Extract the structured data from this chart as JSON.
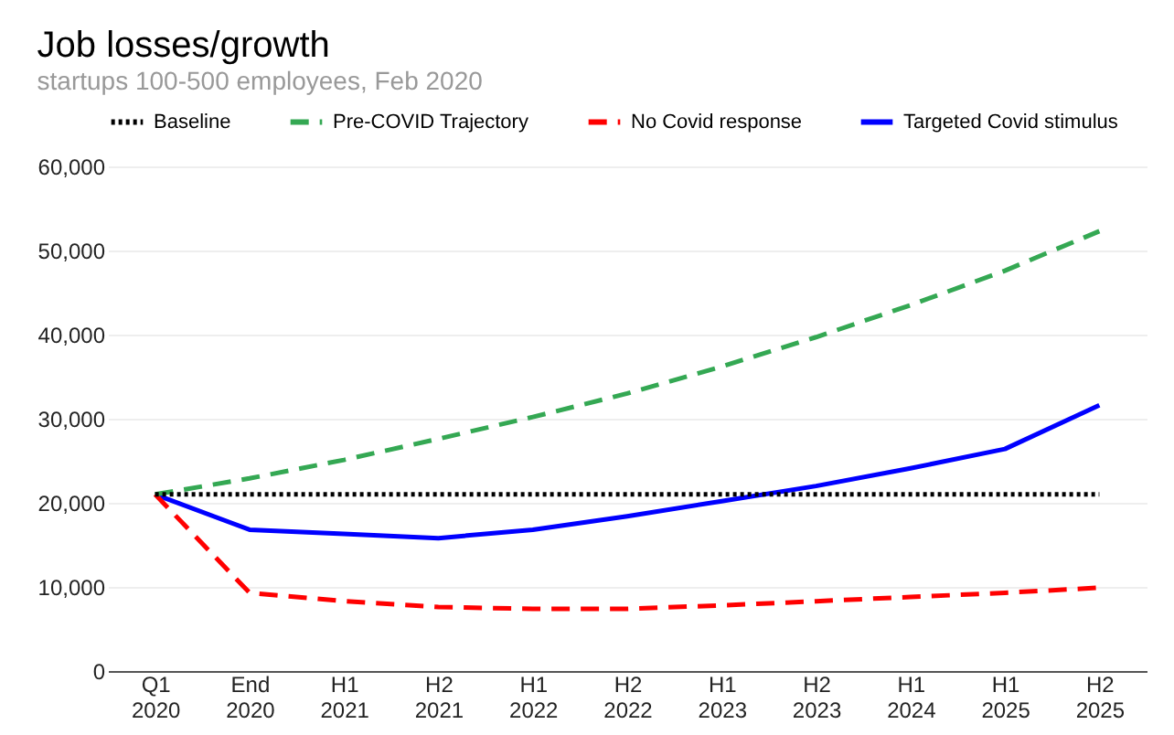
{
  "chart_data": {
    "type": "line",
    "title": "Job losses/growth",
    "subtitle": "startups 100-500 employees, Feb 2020",
    "categories": [
      "Q1 2020",
      "End 2020",
      "H1 2021",
      "H2 2021",
      "H1 2022",
      "H2 2022",
      "H1 2023",
      "H2 2023",
      "H1 2024",
      "H1 2025",
      "H2 2025"
    ],
    "series": [
      {
        "name": "Baseline",
        "color": "#000000",
        "line_style": "dotted",
        "values": [
          21000,
          21000,
          21000,
          21000,
          21000,
          21000,
          21000,
          21000,
          21000,
          21000,
          21000
        ]
      },
      {
        "name": "Pre-COVID Trajectory",
        "color": "#34a853",
        "line_style": "dashed",
        "values": [
          21000,
          22900,
          25100,
          27600,
          30200,
          33000,
          36200,
          39700,
          43500,
          47600,
          52300
        ]
      },
      {
        "name": "No Covid response",
        "color": "#ff0000",
        "line_style": "dashed",
        "values": [
          21000,
          9300,
          8300,
          7600,
          7400,
          7400,
          7800,
          8300,
          8800,
          9300,
          9900
        ]
      },
      {
        "name": "Targeted Covid stimulus",
        "color": "#0000ff",
        "line_style": "solid",
        "values": [
          21000,
          16800,
          16300,
          15800,
          16800,
          18400,
          20200,
          22000,
          24100,
          26400,
          31600
        ]
      }
    ],
    "ylim": [
      0,
      60000
    ],
    "yticks": [
      0,
      {
        "value": 10000,
        "label": "10,000"
      },
      {
        "value": 20000,
        "label": "20,000"
      },
      {
        "value": 30000,
        "label": "30,000"
      },
      {
        "value": 40000,
        "label": "40,000"
      },
      {
        "value": 50000,
        "label": "50,000"
      },
      {
        "value": 60000,
        "label": "60,000"
      }
    ],
    "grid": "y",
    "legend": "top",
    "marker": "none"
  }
}
